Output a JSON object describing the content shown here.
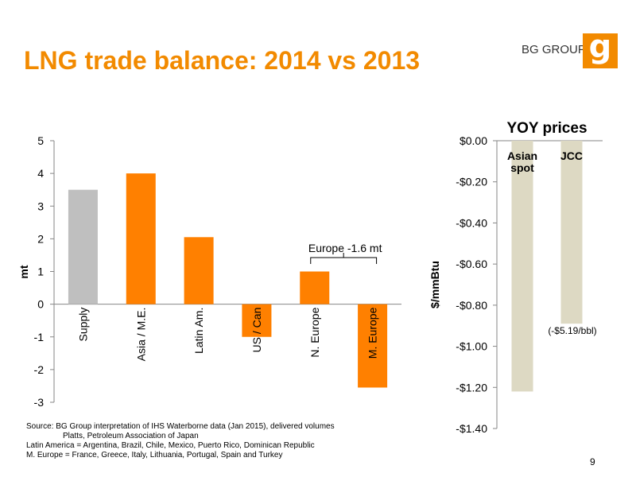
{
  "title": "LNG trade balance: 2014 vs 2013",
  "brand": {
    "name": "BG GROUP",
    "logo_letter": "g",
    "color": "#f28a00"
  },
  "colors": {
    "orange": "#ff8000",
    "grey": "#bfbfbf",
    "beige": "#ddd9c3"
  },
  "chart_data": [
    {
      "type": "bar",
      "title": "",
      "ylabel": "mt",
      "categories": [
        "Supply",
        "Asia / M.E.",
        "Latin Am.",
        "US / Can",
        "N. Europe",
        "M. Europe"
      ],
      "values": [
        3.5,
        4.0,
        2.05,
        -1.0,
        1.0,
        -2.55
      ],
      "bar_colors": [
        "grey",
        "orange",
        "orange",
        "orange",
        "orange",
        "orange"
      ],
      "ylim": [
        -3,
        5
      ],
      "yticks": [
        "5",
        "4",
        "3",
        "2",
        "1",
        "0",
        "-1",
        "-2",
        "-3"
      ],
      "grid": false,
      "annotation": "Europe  -1.6 mt"
    },
    {
      "type": "bar",
      "title": "YOY prices",
      "ylabel": "$/mmBtu",
      "categories": [
        "Asian spot",
        "JCC"
      ],
      "category_labels": [
        [
          "Asian",
          "spot"
        ],
        [
          "JCC"
        ]
      ],
      "values": [
        -1.22,
        -0.89
      ],
      "bar_color": "beige",
      "ylim": [
        -1.4,
        0
      ],
      "yticks": [
        "$0.00",
        "-$0.20",
        "-$0.40",
        "-$0.60",
        "-$0.80",
        "-$1.00",
        "-$1.20",
        "-$1.40"
      ],
      "grid": false,
      "data_labels": [
        "",
        "(-$5.19/bbl)"
      ]
    }
  ],
  "source_lines": [
    "Source: BG Group interpretation of IHS Waterborne data (Jan 2015), delivered volumes",
    "Platts, Petroleum Association of Japan",
    "Latin America = Argentina, Brazil, Chile, Mexico, Puerto Rico, Dominican Republic",
    "M. Europe = France, Greece, Italy, Lithuania, Portugal, Spain and Turkey"
  ],
  "page_number": "9"
}
